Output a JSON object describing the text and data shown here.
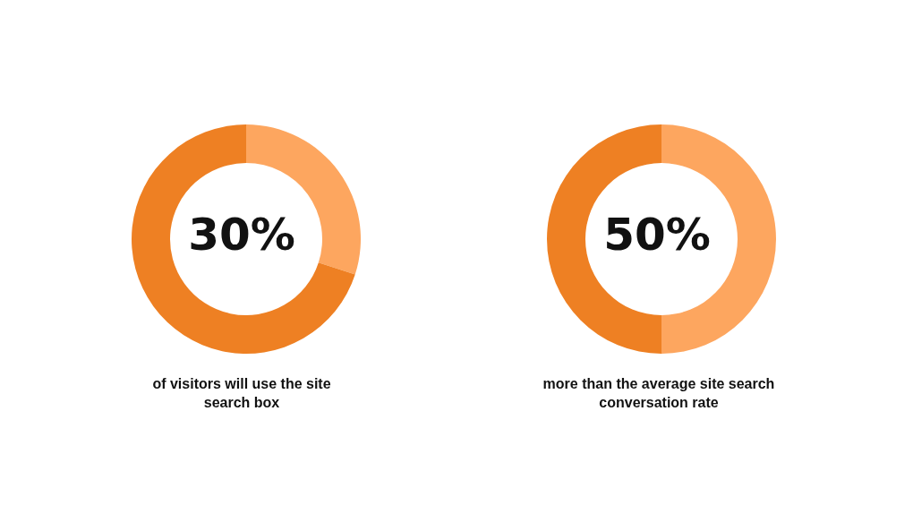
{
  "chart_data": [
    {
      "type": "donut",
      "title": "30%",
      "categories": [
        null,
        null
      ],
      "values": [
        30,
        70
      ],
      "colors": [
        "#fda65f",
        "#ee8023"
      ],
      "annotations": [
        "of visitors will use the site search box"
      ]
    },
    {
      "type": "donut",
      "title": "50%",
      "categories": [
        null,
        null
      ],
      "values": [
        50,
        50
      ],
      "colors": [
        "#fda65f",
        "#ee8023"
      ],
      "annotations": [
        "more than the average site search conversation rate"
      ]
    }
  ]
}
